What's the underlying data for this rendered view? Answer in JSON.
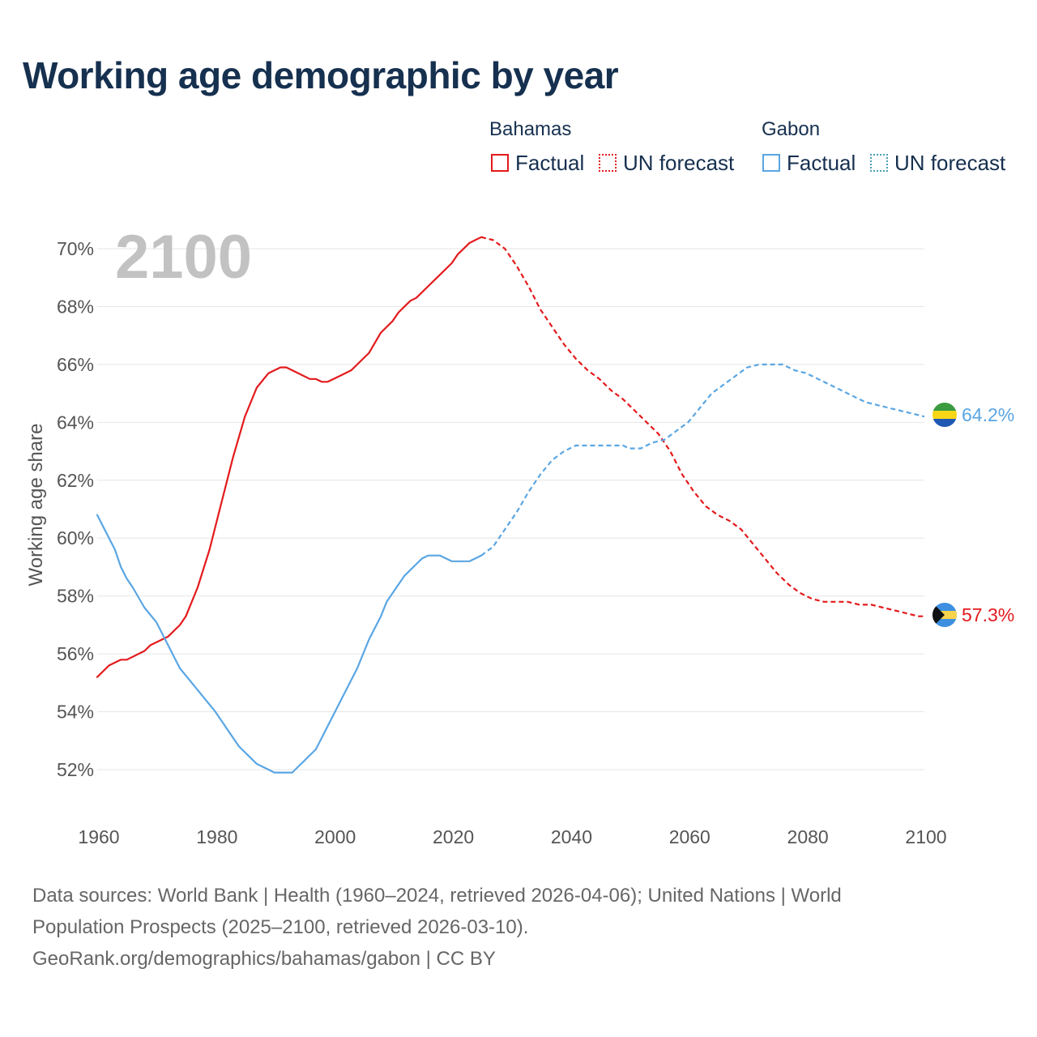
{
  "title": "Working age demographic by year",
  "legend": {
    "groups": [
      {
        "name": "Bahamas",
        "color": "#e31a1c",
        "factual_label": "Factual",
        "forecast_label": "UN forecast"
      },
      {
        "name": "Gabon",
        "color": "#5aa6e3",
        "factual_label": "Factual",
        "forecast_label": "UN forecast"
      }
    ]
  },
  "year_watermark": "2100",
  "footer": {
    "line1": "Data sources: World Bank | Health (1960–2024, retrieved 2026-04-06); United Nations | World",
    "line2": "Population Prospects (2025–2100, retrieved 2026-03-10).",
    "line3": "GeoRank.org/demographics/bahamas/gabon | CC BY"
  },
  "chart_data": {
    "type": "line",
    "title": "Working age demographic by year",
    "xlabel": "",
    "ylabel": "Working age share",
    "xlim": [
      1960,
      2100
    ],
    "ylim": [
      51,
      71
    ],
    "x_ticks": [
      1960,
      1980,
      2000,
      2020,
      2040,
      2060,
      2080,
      2100
    ],
    "y_ticks": [
      52,
      54,
      56,
      58,
      60,
      62,
      64,
      66,
      68,
      70
    ],
    "y_tick_format": "%",
    "grid": true,
    "factual_range": [
      1960,
      2024
    ],
    "forecast_range": [
      2025,
      2100
    ],
    "series": [
      {
        "name": "Bahamas",
        "color": "#e31a1c",
        "end_label": "57.3%",
        "points": [
          [
            1960,
            55.2
          ],
          [
            1962,
            55.6
          ],
          [
            1964,
            55.8
          ],
          [
            1965,
            55.8
          ],
          [
            1968,
            56.1
          ],
          [
            1969,
            56.3
          ],
          [
            1972,
            56.6
          ],
          [
            1974,
            57.0
          ],
          [
            1975,
            57.3
          ],
          [
            1977,
            58.3
          ],
          [
            1979,
            59.6
          ],
          [
            1981,
            61.2
          ],
          [
            1983,
            62.8
          ],
          [
            1985,
            64.2
          ],
          [
            1987,
            65.2
          ],
          [
            1989,
            65.7
          ],
          [
            1991,
            65.9
          ],
          [
            1992,
            65.9
          ],
          [
            1994,
            65.7
          ],
          [
            1996,
            65.5
          ],
          [
            1997,
            65.5
          ],
          [
            1998,
            65.4
          ],
          [
            1999,
            65.4
          ],
          [
            2001,
            65.6
          ],
          [
            2003,
            65.8
          ],
          [
            2006,
            66.4
          ],
          [
            2008,
            67.1
          ],
          [
            2010,
            67.5
          ],
          [
            2011,
            67.8
          ],
          [
            2013,
            68.2
          ],
          [
            2014,
            68.3
          ],
          [
            2016,
            68.7
          ],
          [
            2018,
            69.1
          ],
          [
            2020,
            69.5
          ],
          [
            2021,
            69.8
          ],
          [
            2023,
            70.2
          ],
          [
            2025,
            70.4
          ],
          [
            2027,
            70.3
          ],
          [
            2029,
            70.0
          ],
          [
            2031,
            69.4
          ],
          [
            2033,
            68.7
          ],
          [
            2035,
            67.9
          ],
          [
            2037,
            67.3
          ],
          [
            2039,
            66.7
          ],
          [
            2041,
            66.2
          ],
          [
            2043,
            65.8
          ],
          [
            2045,
            65.5
          ],
          [
            2047,
            65.1
          ],
          [
            2049,
            64.8
          ],
          [
            2051,
            64.4
          ],
          [
            2053,
            64.0
          ],
          [
            2055,
            63.6
          ],
          [
            2057,
            63.0
          ],
          [
            2059,
            62.2
          ],
          [
            2061,
            61.6
          ],
          [
            2063,
            61.1
          ],
          [
            2065,
            60.8
          ],
          [
            2067,
            60.6
          ],
          [
            2069,
            60.3
          ],
          [
            2071,
            59.8
          ],
          [
            2073,
            59.3
          ],
          [
            2075,
            58.8
          ],
          [
            2077,
            58.4
          ],
          [
            2079,
            58.1
          ],
          [
            2081,
            57.9
          ],
          [
            2083,
            57.8
          ],
          [
            2087,
            57.8
          ],
          [
            2089,
            57.7
          ],
          [
            2091,
            57.7
          ],
          [
            2093,
            57.6
          ],
          [
            2095,
            57.5
          ],
          [
            2097,
            57.4
          ],
          [
            2099,
            57.3
          ],
          [
            2100,
            57.3
          ]
        ]
      },
      {
        "name": "Gabon",
        "color": "#5aa6e3",
        "end_label": "64.2%",
        "points": [
          [
            1960,
            60.8
          ],
          [
            1963,
            59.6
          ],
          [
            1964,
            59.0
          ],
          [
            1965,
            58.6
          ],
          [
            1966,
            58.3
          ],
          [
            1968,
            57.6
          ],
          [
            1970,
            57.1
          ],
          [
            1972,
            56.3
          ],
          [
            1973,
            55.9
          ],
          [
            1974,
            55.5
          ],
          [
            1976,
            55.0
          ],
          [
            1978,
            54.5
          ],
          [
            1980,
            54.0
          ],
          [
            1982,
            53.4
          ],
          [
            1984,
            52.8
          ],
          [
            1986,
            52.4
          ],
          [
            1987,
            52.2
          ],
          [
            1989,
            52.0
          ],
          [
            1990,
            51.9
          ],
          [
            1993,
            51.9
          ],
          [
            1994,
            52.1
          ],
          [
            1995,
            52.3
          ],
          [
            1996,
            52.5
          ],
          [
            1997,
            52.7
          ],
          [
            1998,
            53.1
          ],
          [
            2000,
            53.9
          ],
          [
            2002,
            54.7
          ],
          [
            2004,
            55.5
          ],
          [
            2006,
            56.5
          ],
          [
            2008,
            57.3
          ],
          [
            2009,
            57.8
          ],
          [
            2011,
            58.4
          ],
          [
            2012,
            58.7
          ],
          [
            2014,
            59.1
          ],
          [
            2015,
            59.3
          ],
          [
            2016,
            59.4
          ],
          [
            2018,
            59.4
          ],
          [
            2020,
            59.2
          ],
          [
            2023,
            59.2
          ],
          [
            2025,
            59.4
          ],
          [
            2027,
            59.7
          ],
          [
            2029,
            60.3
          ],
          [
            2031,
            60.9
          ],
          [
            2033,
            61.6
          ],
          [
            2035,
            62.2
          ],
          [
            2037,
            62.7
          ],
          [
            2039,
            63.0
          ],
          [
            2041,
            63.2
          ],
          [
            2049,
            63.2
          ],
          [
            2050,
            63.1
          ],
          [
            2052,
            63.1
          ],
          [
            2054,
            63.3
          ],
          [
            2056,
            63.4
          ],
          [
            2058,
            63.7
          ],
          [
            2060,
            64.0
          ],
          [
            2062,
            64.5
          ],
          [
            2064,
            65.0
          ],
          [
            2066,
            65.3
          ],
          [
            2068,
            65.6
          ],
          [
            2070,
            65.9
          ],
          [
            2072,
            66.0
          ],
          [
            2076,
            66.0
          ],
          [
            2078,
            65.8
          ],
          [
            2080,
            65.7
          ],
          [
            2082,
            65.5
          ],
          [
            2084,
            65.3
          ],
          [
            2086,
            65.1
          ],
          [
            2088,
            64.9
          ],
          [
            2090,
            64.7
          ],
          [
            2092,
            64.6
          ],
          [
            2094,
            64.5
          ],
          [
            2096,
            64.4
          ],
          [
            2098,
            64.3
          ],
          [
            2100,
            64.2
          ]
        ]
      }
    ]
  }
}
